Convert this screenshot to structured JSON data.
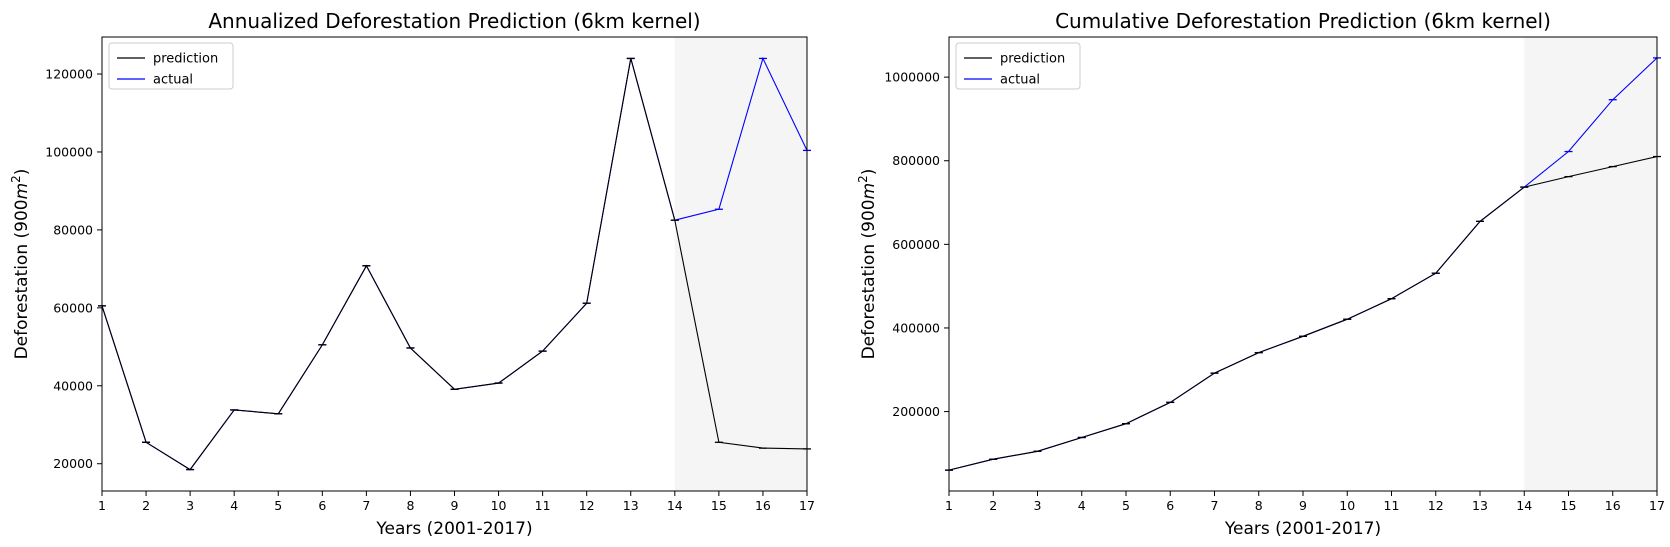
{
  "chart_data": [
    {
      "type": "line",
      "title": "Annualized Deforestation Prediction (6km kernel)",
      "xlabel": "Years (2001-2017)",
      "ylabel": "Deforestation (900",
      "ylabel_unit": "m",
      "ylabel_sup": "2",
      "ylabel_close": ")",
      "x": [
        1,
        2,
        3,
        4,
        5,
        6,
        7,
        8,
        9,
        10,
        11,
        12,
        13,
        14,
        15,
        16,
        17
      ],
      "xlim": [
        1,
        17
      ],
      "ylim": [
        13000,
        129500
      ],
      "xticks": [
        "1",
        "2",
        "3",
        "4",
        "5",
        "6",
        "7",
        "8",
        "9",
        "10",
        "11",
        "12",
        "13",
        "14",
        "15",
        "16",
        "17"
      ],
      "yticks": [
        20000,
        40000,
        60000,
        80000,
        100000,
        120000
      ],
      "ytick_labels": [
        "20000",
        "40000",
        "60000",
        "80000",
        "100000",
        "120000"
      ],
      "shaded_region": [
        14,
        17
      ],
      "shaded_color": "#f5f5f5",
      "legend_position": "upper-left",
      "series": [
        {
          "name": "prediction",
          "color": "#000000",
          "values": [
            60500,
            25500,
            18500,
            33800,
            32800,
            50500,
            70800,
            49700,
            39100,
            40700,
            48900,
            61200,
            124000,
            82500,
            25500,
            24000,
            23800
          ]
        },
        {
          "name": "actual",
          "color": "#0000ff",
          "values": [
            60500,
            25500,
            18500,
            33800,
            32800,
            50500,
            70800,
            49700,
            39100,
            40700,
            48900,
            61200,
            124000,
            82500,
            85300,
            124000,
            100400
          ]
        }
      ]
    },
    {
      "type": "line",
      "title": "Cumulative Deforestation Prediction (6km kernel)",
      "xlabel": "Years (2001-2017)",
      "ylabel": "Deforestation (900",
      "ylabel_unit": "m",
      "ylabel_sup": "2",
      "ylabel_close": ")",
      "x": [
        1,
        2,
        3,
        4,
        5,
        6,
        7,
        8,
        9,
        10,
        11,
        12,
        13,
        14,
        15,
        16,
        17
      ],
      "xlim": [
        1,
        17
      ],
      "ylim": [
        10000,
        1096000
      ],
      "xticks": [
        "1",
        "2",
        "3",
        "4",
        "5",
        "6",
        "7",
        "8",
        "9",
        "10",
        "11",
        "12",
        "13",
        "14",
        "15",
        "16",
        "17"
      ],
      "yticks": [
        200000,
        400000,
        600000,
        800000,
        1000000
      ],
      "ytick_labels": [
        "200000",
        "400000",
        "600000",
        "800000",
        "1000000"
      ],
      "shaded_region": [
        14,
        17
      ],
      "shaded_color": "#f5f5f5",
      "legend_position": "upper-left",
      "series": [
        {
          "name": "prediction",
          "color": "#000000",
          "values": [
            60000,
            86000,
            105000,
            138000,
            171000,
            222000,
            292000,
            341000,
            380000,
            421000,
            470000,
            531000,
            655000,
            737000,
            762000,
            786000,
            810000
          ]
        },
        {
          "name": "actual",
          "color": "#0000ff",
          "values": [
            60000,
            86000,
            105000,
            138000,
            171000,
            222000,
            292000,
            341000,
            380000,
            421000,
            470000,
            531000,
            655000,
            737000,
            822000,
            946000,
            1046000
          ]
        }
      ]
    }
  ]
}
